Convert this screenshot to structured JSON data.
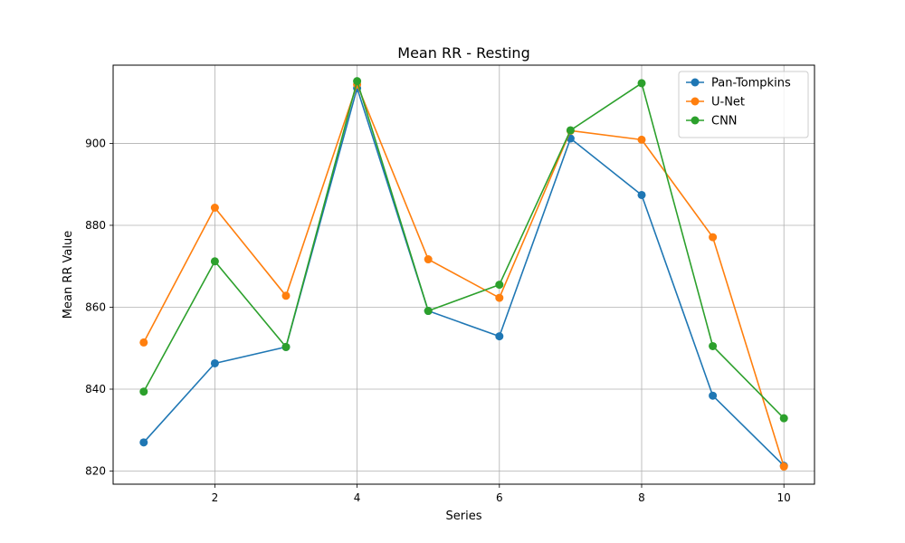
{
  "chart_data": {
    "type": "line",
    "title": "Mean RR - Resting",
    "xlabel": "Series",
    "ylabel": "Mean RR Value",
    "xlim": [
      0.57,
      10.43
    ],
    "ylim": [
      816.8,
      919.1
    ],
    "x_ticks": [
      2,
      4,
      6,
      8,
      10
    ],
    "y_ticks": [
      820,
      840,
      860,
      880,
      900
    ],
    "grid": true,
    "legend_position": "top-right",
    "marker": "circle",
    "x": [
      1,
      2,
      3,
      4,
      5,
      6,
      7,
      8,
      9,
      10
    ],
    "series": [
      {
        "name": "Pan-Tompkins",
        "color": "#1f77b4",
        "values": [
          827.0,
          846.3,
          850.3,
          913.5,
          859.1,
          852.9,
          901.2,
          887.4,
          838.4,
          821.3
        ]
      },
      {
        "name": "U-Net",
        "color": "#ff7f0e",
        "values": [
          851.4,
          884.3,
          862.8,
          914.4,
          871.7,
          862.3,
          903.1,
          900.9,
          877.1,
          821.1
        ]
      },
      {
        "name": "CNN",
        "color": "#2ca02c",
        "values": [
          839.4,
          871.2,
          850.3,
          915.2,
          859.1,
          865.5,
          903.2,
          914.7,
          850.5,
          832.9
        ]
      }
    ]
  }
}
